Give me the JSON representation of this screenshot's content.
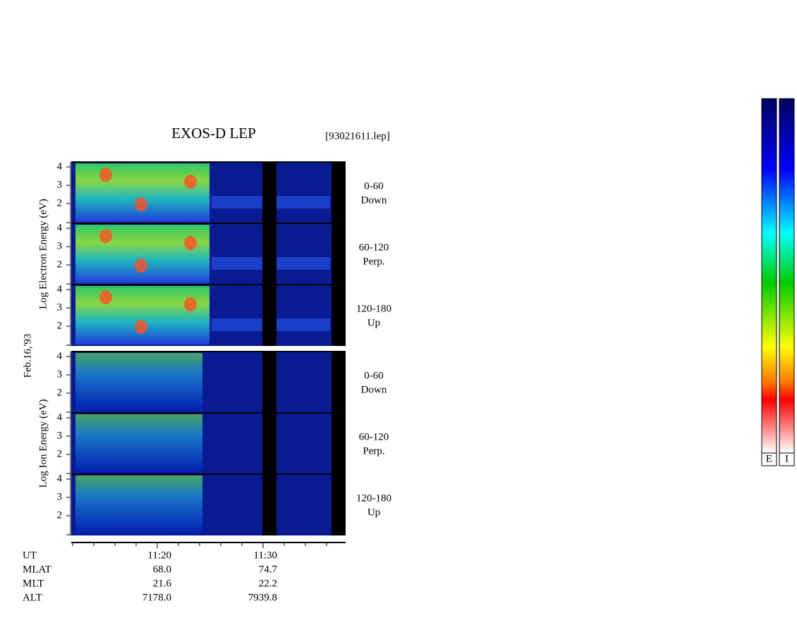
{
  "header": {
    "title": "EXOS-D LEP",
    "file": "[93021611.lep]"
  },
  "date": "Feb.16,'93",
  "groups": [
    {
      "ylabel": "Log Electron Energy (eV)",
      "panels": [
        {
          "range": "0-60",
          "direction": "Down",
          "ticks": [
            "4",
            "3",
            "2"
          ]
        },
        {
          "range": "60-120",
          "direction": "Perp.",
          "ticks": [
            "4",
            "3",
            "2"
          ]
        },
        {
          "range": "120-180",
          "direction": "Up",
          "ticks": [
            "4",
            "3",
            "2"
          ]
        }
      ]
    },
    {
      "ylabel": "Log Ion Energy (eV)",
      "panels": [
        {
          "range": "0-60",
          "direction": "Down",
          "ticks": [
            "4",
            "3",
            "2"
          ]
        },
        {
          "range": "60-120",
          "direction": "Perp.",
          "ticks": [
            "4",
            "3",
            "2"
          ]
        },
        {
          "range": "120-180",
          "direction": "Up",
          "ticks": [
            "4",
            "3",
            "2"
          ]
        }
      ]
    }
  ],
  "orbit": {
    "labels": [
      "UT",
      "MLAT",
      "MLT",
      "ALT"
    ],
    "columns": [
      [
        "11:20",
        "68.0",
        "21.6",
        "7178.0"
      ],
      [
        "11:30",
        "74.7",
        "22.2",
        "7939.8"
      ]
    ]
  },
  "colorbars": [
    "E",
    "I"
  ]
}
